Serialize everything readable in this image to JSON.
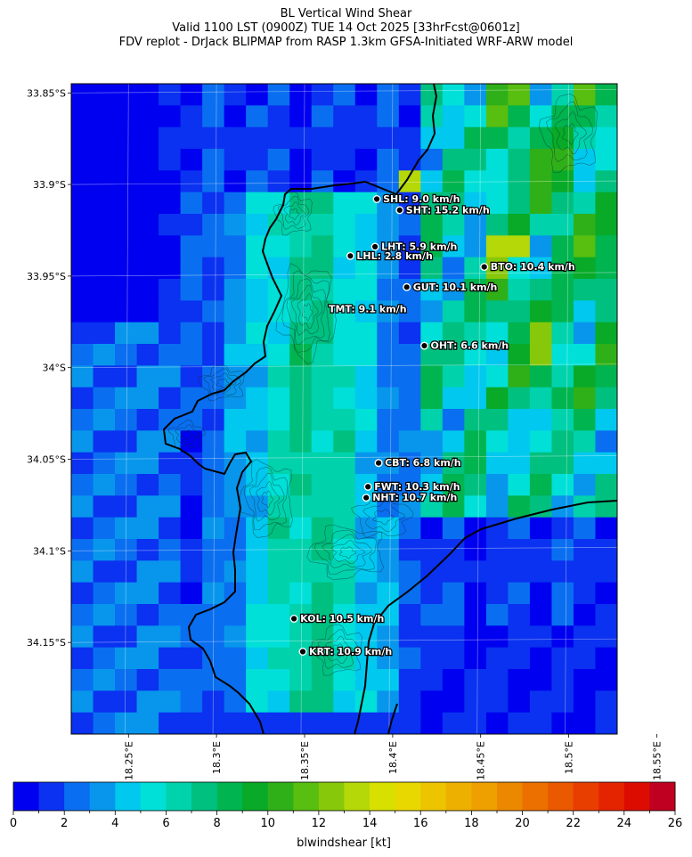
{
  "title": {
    "line1": "BL Vertical Wind Shear",
    "line2": "Valid 1100 LST (0900Z) TUE 14 Oct 2025 [33hrFcst@0601z]",
    "line3": "FDV replot - DrJack BLIPMAP from RASP 1.3km GFSA-Initiated WRF-ARW model"
  },
  "map": {
    "lat_range": [
      -34.2,
      -33.845
    ],
    "lon_range": [
      18.2175,
      18.5275
    ],
    "lat_ticks": [
      {
        "value": -33.85,
        "label": "33.85°S"
      },
      {
        "value": -33.9,
        "label": "33.9°S"
      },
      {
        "value": -33.95,
        "label": "33.95°S"
      },
      {
        "value": -34.0,
        "label": "34°S"
      },
      {
        "value": -34.05,
        "label": "34.05°S"
      },
      {
        "value": -34.1,
        "label": "34.1°S"
      },
      {
        "value": -34.15,
        "label": "34.15°S"
      }
    ],
    "lon_ticks": [
      {
        "value": 18.25,
        "label": "18.25°E"
      },
      {
        "value": 18.3,
        "label": "18.3°E"
      },
      {
        "value": 18.35,
        "label": "18.35°E"
      },
      {
        "value": 18.4,
        "label": "18.4°E"
      },
      {
        "value": 18.45,
        "label": "18.45°E"
      },
      {
        "value": 18.5,
        "label": "18.5°E"
      },
      {
        "value": 18.55,
        "label": "18.55°E"
      }
    ],
    "stations": [
      {
        "code": "SHL",
        "label": "SHL: 9.0 km/h",
        "lat": -33.908,
        "lon": 18.391
      },
      {
        "code": "SHT",
        "label": "SHT: 15.2 km/h",
        "lat": -33.914,
        "lon": 18.404
      },
      {
        "code": "LHT",
        "label": "LHT: 5.9 km/h",
        "lat": -33.934,
        "lon": 18.39
      },
      {
        "code": "LHL",
        "label": "LHL: 2.8 km/h",
        "lat": -33.939,
        "lon": 18.376
      },
      {
        "code": "BTO",
        "label": "BTO: 10.4 km/h",
        "lat": -33.945,
        "lon": 18.452
      },
      {
        "code": "GUT",
        "label": "GUT: 10.1 km/h",
        "lat": -33.956,
        "lon": 18.408
      },
      {
        "code": "TMT",
        "label": "TMT: 9.1 km/h",
        "lat": -33.968,
        "lon": null
      },
      {
        "code": "OHT",
        "label": "OHT: 6.6 km/h",
        "lat": -33.988,
        "lon": 18.418
      },
      {
        "code": "CBT",
        "label": "CBT: 6.8 km/h",
        "lat": -34.052,
        "lon": 18.392
      },
      {
        "code": "FWT",
        "label": "FWT: 10.3 km/h",
        "lat": -34.065,
        "lon": 18.386
      },
      {
        "code": "NHT",
        "label": "NHT: 10.7 km/h",
        "lat": -34.071,
        "lon": 18.385
      },
      {
        "code": "KOL",
        "label": "KOL: 10.5 km/h",
        "lat": -34.137,
        "lon": 18.344
      },
      {
        "code": "KRT",
        "label": "KRT: 10.9 km/h",
        "lat": -34.155,
        "lon": 18.349
      }
    ]
  },
  "colorbar": {
    "min": 0,
    "max": 26,
    "step": 1,
    "tick_labels": [
      "0",
      "2",
      "4",
      "6",
      "8",
      "10",
      "12",
      "14",
      "16",
      "18",
      "20",
      "22",
      "24",
      "26"
    ],
    "label": "blwindshear [kt]",
    "colors": [
      "#0000f0",
      "#0a32f0",
      "#0a6ef0",
      "#0896ec",
      "#00c8ee",
      "#00e0d8",
      "#00d2ac",
      "#00c080",
      "#00b450",
      "#08aa28",
      "#30b018",
      "#58be10",
      "#88c80a",
      "#b4d808",
      "#d8e000",
      "#e8d800",
      "#ecc400",
      "#eeb000",
      "#eea000",
      "#ec8800",
      "#ec7000",
      "#ea5800",
      "#e83e00",
      "#e42400",
      "#dc0c00",
      "#c00020"
    ]
  }
}
